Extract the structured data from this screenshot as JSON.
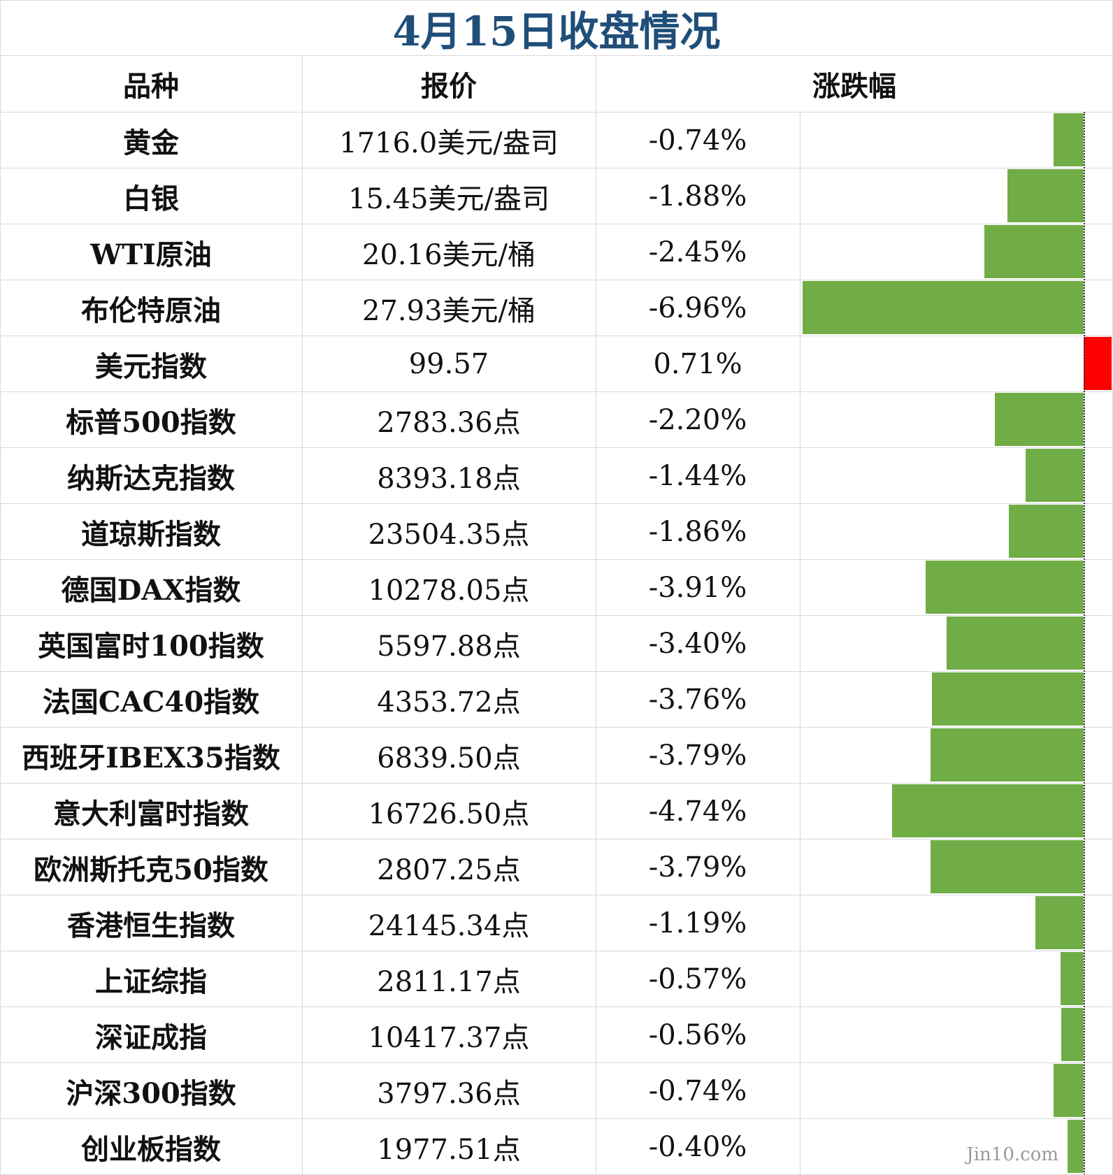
{
  "title": "4月15日收盘情况",
  "headers": {
    "name": "品种",
    "price": "报价",
    "change": "涨跌幅"
  },
  "colors": {
    "down": "#70ad47",
    "up": "#ff0000",
    "title": "#1f4e79"
  },
  "watermark": "Jin10.com",
  "chart_data": {
    "type": "bar",
    "orientation": "horizontal",
    "categories": [
      "黄金",
      "白银",
      "WTI原油",
      "布伦特原油",
      "美元指数",
      "标普500指数",
      "纳斯达克指数",
      "道琼斯指数",
      "德国DAX指数",
      "英国富时100指数",
      "法国CAC40指数",
      "西班牙IBEX35指数",
      "意大利富时指数",
      "欧洲斯托克50指数",
      "香港恒生指数",
      "上证综指",
      "深证成指",
      "沪深300指数",
      "创业板指数"
    ],
    "values": [
      -0.74,
      -1.88,
      -2.45,
      -6.96,
      0.71,
      -2.2,
      -1.44,
      -1.86,
      -3.91,
      -3.4,
      -3.76,
      -3.79,
      -4.74,
      -3.79,
      -1.19,
      -0.57,
      -0.56,
      -0.74,
      -0.4
    ],
    "xlim": [
      -6.96,
      0.71
    ]
  },
  "rows": [
    {
      "name": "黄金",
      "price": "1716.0美元/盎司",
      "change": "-0.74%"
    },
    {
      "name": "白银",
      "price": "15.45美元/盎司",
      "change": "-1.88%"
    },
    {
      "name": "WTI原油",
      "price": "20.16美元/桶",
      "change": "-2.45%"
    },
    {
      "name": "布伦特原油",
      "price": "27.93美元/桶",
      "change": "-6.96%"
    },
    {
      "name": "美元指数",
      "price": "99.57",
      "change": "0.71%"
    },
    {
      "name": "标普500指数",
      "price": "2783.36点",
      "change": "-2.20%"
    },
    {
      "name": "纳斯达克指数",
      "price": "8393.18点",
      "change": "-1.44%"
    },
    {
      "name": "道琼斯指数",
      "price": "23504.35点",
      "change": "-1.86%"
    },
    {
      "name": "德国DAX指数",
      "price": "10278.05点",
      "change": "-3.91%"
    },
    {
      "name": "英国富时100指数",
      "price": "5597.88点",
      "change": "-3.40%"
    },
    {
      "name": "法国CAC40指数",
      "price": "4353.72点",
      "change": "-3.76%"
    },
    {
      "name": "西班牙IBEX35指数",
      "price": "6839.50点",
      "change": "-3.79%"
    },
    {
      "name": "意大利富时指数",
      "price": "16726.50点",
      "change": "-4.74%"
    },
    {
      "name": "欧洲斯托克50指数",
      "price": "2807.25点",
      "change": "-3.79%"
    },
    {
      "name": "香港恒生指数",
      "price": "24145.34点",
      "change": "-1.19%"
    },
    {
      "name": "上证综指",
      "price": "2811.17点",
      "change": "-0.57%"
    },
    {
      "name": "深证成指",
      "price": "10417.37点",
      "change": "-0.56%"
    },
    {
      "name": "沪深300指数",
      "price": "3797.36点",
      "change": "-0.74%"
    },
    {
      "name": "创业板指数",
      "price": "1977.51点",
      "change": "-0.40%"
    }
  ]
}
